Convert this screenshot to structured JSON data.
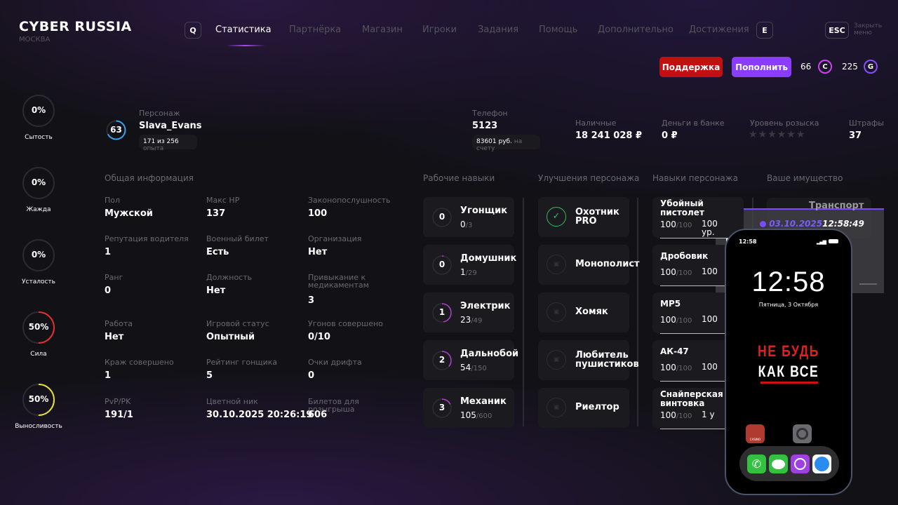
{
  "header": {
    "logo": "CYBER RUSSIA",
    "city": "МОСКВА",
    "key_left": "Q",
    "key_right": "E",
    "esc": "ESC",
    "close_label": "Закрыть меню",
    "tabs": [
      "Статистика",
      "Партнёрка",
      "Магазин",
      "Игроки",
      "Задания",
      "Помощь",
      "Дополнительно",
      "Достижения"
    ],
    "active_tab": 0
  },
  "actions": {
    "support": "Поддержка",
    "topup": "Пополнить",
    "coins_c": "66",
    "coin_c_letter": "C",
    "coins_g": "225",
    "coin_g_letter": "G"
  },
  "colors": {
    "accent": "#8a3cff",
    "support": "#c0100f",
    "coin_c": "#d040f0",
    "coin_g": "#8a4cff"
  },
  "needs": [
    {
      "label": "Сытость",
      "value": "0%",
      "percent": 0,
      "color": "#444"
    },
    {
      "label": "Жажда",
      "value": "0%",
      "percent": 0,
      "color": "#444"
    },
    {
      "label": "Усталость",
      "value": "0%",
      "percent": 0,
      "color": "#444"
    },
    {
      "label": "Сила",
      "value": "50%",
      "percent": 50,
      "color": "#e03030"
    },
    {
      "label": "Выносливость",
      "value": "50%",
      "percent": 50,
      "color": "#e8e030"
    }
  ],
  "character": {
    "level": "63",
    "label": "Персонаж",
    "name": "Slava_Evans",
    "exp_current": "171 из 256",
    "exp_suffix": "опыта"
  },
  "phone": {
    "label": "Телефон",
    "number": "5123",
    "balance": "83601 руб.",
    "balance_suffix": "на счету"
  },
  "money": [
    {
      "label": "Наличные",
      "value": "18 241 028 ₽"
    },
    {
      "label": "Деньги в банке",
      "value": "0 ₽"
    }
  ],
  "wanted": {
    "label": "Уровень розыска",
    "stars": 6,
    "filled": 0
  },
  "fines": {
    "label": "Штрафы",
    "value": "37"
  },
  "general": {
    "title": "Общая информация",
    "items": [
      {
        "label": "Пол",
        "value": "Мужской"
      },
      {
        "label": "Макс HP",
        "value": "137"
      },
      {
        "label": "Законопослушность",
        "value": "100"
      },
      {
        "label": "Репутация водителя",
        "value": "1"
      },
      {
        "label": "Военный билет",
        "value": "Есть"
      },
      {
        "label": "Организация",
        "value": "Нет"
      },
      {
        "label": "Ранг",
        "value": "0"
      },
      {
        "label": "Должность",
        "value": "Нет"
      },
      {
        "label": "Привыкание к медикаментам",
        "value": "3"
      },
      {
        "label": "Работа",
        "value": "Нет"
      },
      {
        "label": "Игровой статус",
        "value": "Опытный"
      },
      {
        "label": "Угонов совершено",
        "value": "0/10"
      },
      {
        "label": "Краж совершено",
        "value": "1"
      },
      {
        "label": "Рейтинг гонщика",
        "value": "5"
      },
      {
        "label": "Очки дрифта",
        "value": "0"
      },
      {
        "label": "PvP/PK",
        "value": "191/1"
      },
      {
        "label": "Цветной ник",
        "value": "30.10.2025 20:26:19"
      },
      {
        "label": "Билетов для розыгрыша",
        "value": "606"
      }
    ]
  },
  "work_skills": {
    "title": "Рабочие навыки",
    "items": [
      {
        "level": "0",
        "name": "Угонщик",
        "cur": "0",
        "max": "/3",
        "progress": 0
      },
      {
        "level": "0",
        "name": "Домушник",
        "cur": "1",
        "max": "/29",
        "progress": 0.03
      },
      {
        "level": "1",
        "name": "Электрик",
        "cur": "23",
        "max": "/49",
        "progress": 0.47
      },
      {
        "level": "2",
        "name": "Дальнобой",
        "cur": "54",
        "max": "/150",
        "progress": 0.36
      },
      {
        "level": "3",
        "name": "Механик",
        "cur": "105",
        "max": "/600",
        "progress": 0.18
      }
    ]
  },
  "upgrades": {
    "title": "Улучшения персонажа",
    "items": [
      {
        "name": "Охотник PRO",
        "unlocked": true
      },
      {
        "name": "Монополист",
        "unlocked": false
      },
      {
        "name": "Хомяк",
        "unlocked": false
      },
      {
        "name": "Любитель пушистиков",
        "unlocked": false
      },
      {
        "name": "Риелтор",
        "unlocked": false
      }
    ]
  },
  "char_skills": {
    "title": "Навыки персонажа",
    "items": [
      {
        "name": "Убойный пистолет",
        "cur": "100",
        "max": "/100",
        "level": "100 ур."
      },
      {
        "name": "Дробовик",
        "cur": "100",
        "max": "/100",
        "level": "100"
      },
      {
        "name": "MP5",
        "cur": "100",
        "max": "/100",
        "level": "100"
      },
      {
        "name": "АК-47",
        "cur": "100",
        "max": "/100",
        "level": "100"
      },
      {
        "name": "Снайперская винтовка",
        "cur": "100",
        "max": "/100",
        "level": "1 у"
      }
    ]
  },
  "property": {
    "title": "Ваше имущество",
    "item": "Транспорт"
  },
  "overlay": {
    "date": "03.10.2025",
    "time": "12:58:49",
    "partial": "В"
  },
  "lockscreen": {
    "status_time": "12:58",
    "clock": "12:58",
    "date": "Пятница, 3 Октября",
    "slogan1": "НЕ БУДЬ",
    "slogan2": "КАК ВСЕ",
    "app_label": "CASINO",
    "dock": [
      "phone-icon",
      "messages-icon",
      "podcasts-icon",
      "safari-icon"
    ]
  }
}
